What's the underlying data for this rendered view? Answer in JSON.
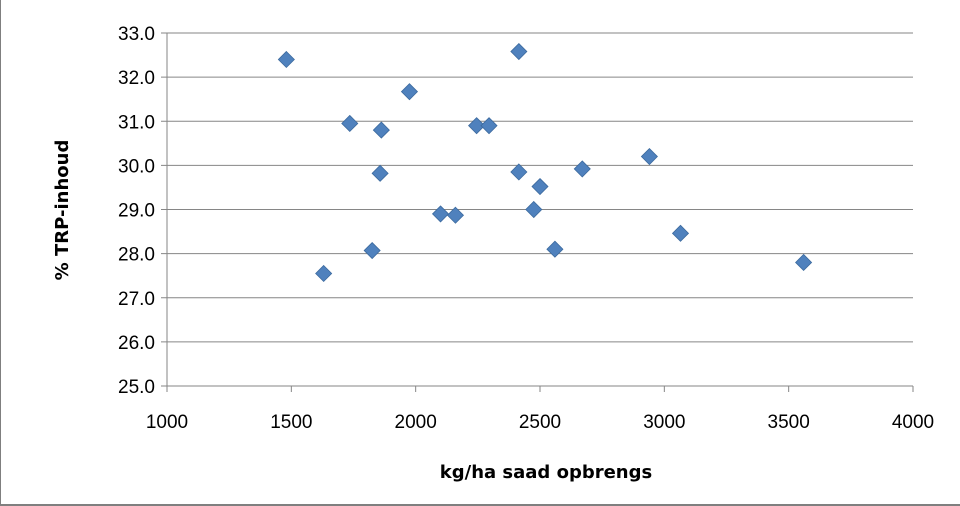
{
  "chart_data": {
    "type": "scatter",
    "title": "",
    "xlabel": "kg/ha saad opbrengs",
    "ylabel": "% TRP-inhoud",
    "xlim": [
      1000,
      4000
    ],
    "ylim": [
      25.0,
      33.0
    ],
    "x_ticks": [
      1000,
      1500,
      2000,
      2500,
      3000,
      3500,
      4000
    ],
    "y_ticks": [
      25.0,
      26.0,
      27.0,
      28.0,
      29.0,
      30.0,
      31.0,
      32.0,
      33.0
    ],
    "x_tick_labels": [
      "1000",
      "1500",
      "2000",
      "2500",
      "3000",
      "3500",
      "4000"
    ],
    "y_tick_labels": [
      "25.0",
      "26.0",
      "27.0",
      "28.0",
      "29.0",
      "30.0",
      "31.0",
      "32.0",
      "33.0"
    ],
    "grid": "horizontal",
    "legend": "none",
    "marker": "diamond",
    "marker_color": "#4f81bd",
    "points": [
      {
        "x": 1480,
        "y": 32.4
      },
      {
        "x": 1630,
        "y": 27.55
      },
      {
        "x": 1735,
        "y": 30.95
      },
      {
        "x": 1825,
        "y": 28.07
      },
      {
        "x": 1857,
        "y": 29.82
      },
      {
        "x": 1862,
        "y": 30.8
      },
      {
        "x": 1975,
        "y": 31.67
      },
      {
        "x": 2100,
        "y": 28.9
      },
      {
        "x": 2160,
        "y": 28.87
      },
      {
        "x": 2245,
        "y": 30.9
      },
      {
        "x": 2295,
        "y": 30.9
      },
      {
        "x": 2415,
        "y": 32.58
      },
      {
        "x": 2415,
        "y": 29.85
      },
      {
        "x": 2475,
        "y": 29.0
      },
      {
        "x": 2500,
        "y": 29.52
      },
      {
        "x": 2560,
        "y": 28.1
      },
      {
        "x": 2670,
        "y": 29.92
      },
      {
        "x": 2940,
        "y": 30.2
      },
      {
        "x": 3065,
        "y": 28.46
      },
      {
        "x": 3560,
        "y": 27.8
      }
    ]
  }
}
